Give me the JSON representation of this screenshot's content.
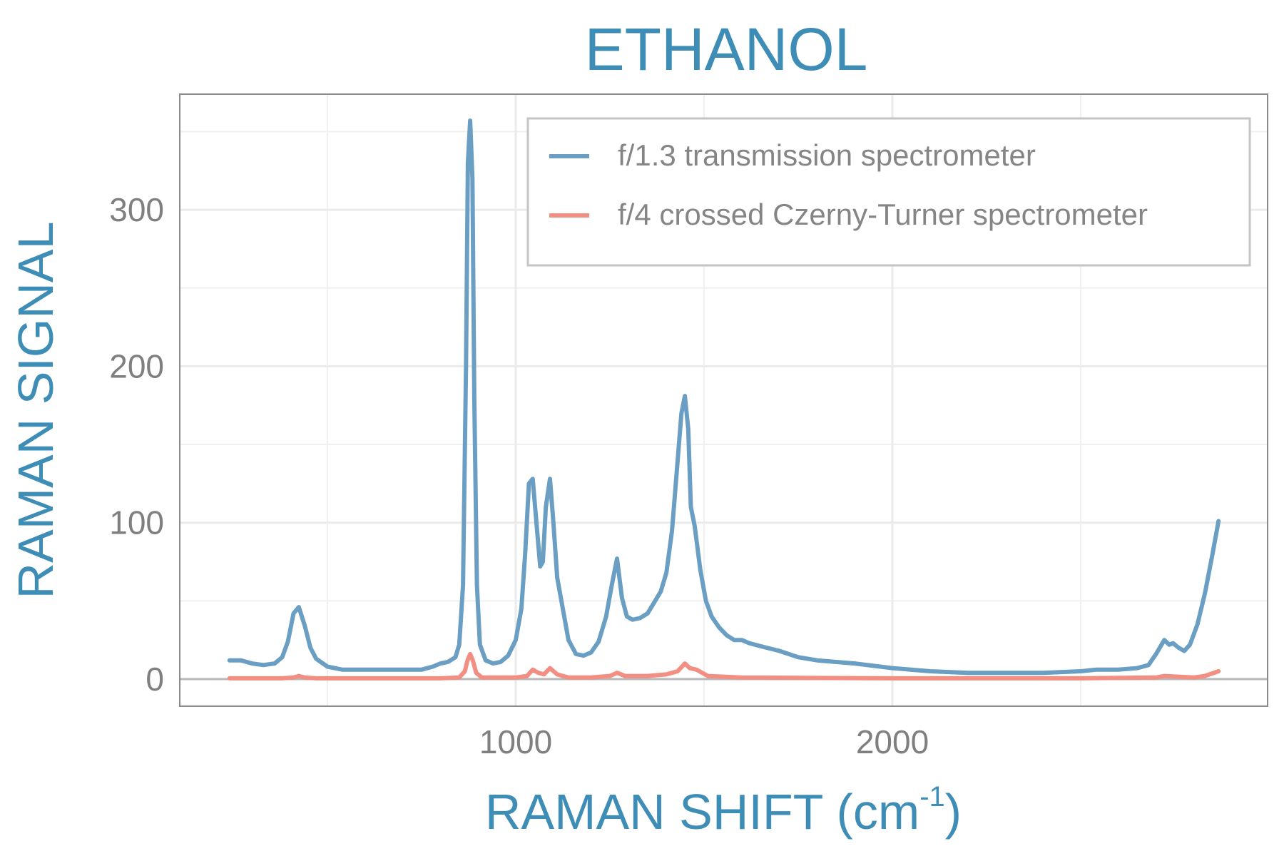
{
  "chart_data": {
    "type": "line",
    "title": "ETHANOL",
    "xlabel": "RAMAN SHIFT (cm-1)",
    "xlabel_parts": {
      "main": "RAMAN SHIFT (cm",
      "sup": "-1",
      "close": ")"
    },
    "ylabel": "RAMAN SIGNAL",
    "xlim": [
      0,
      3100
    ],
    "ylim": [
      -17,
      372
    ],
    "x_ticks": [
      1000,
      2000
    ],
    "x_tick_labels": [
      "1000",
      "2000"
    ],
    "x_minor_grid": [
      500,
      1500,
      2500
    ],
    "y_ticks": [
      0,
      100,
      200,
      300
    ],
    "y_tick_labels": [
      "0",
      "100",
      "200",
      "300"
    ],
    "y_minor_grid": [
      50,
      150,
      250,
      350
    ],
    "grid": true,
    "zero_line": true,
    "legend_position": "top-right (inside)",
    "series": [
      {
        "name": "f/1.3 transmission spectrometer",
        "color": "#6a9fc3",
        "x": [
          240,
          270,
          300,
          330,
          360,
          380,
          395,
          410,
          424,
          440,
          455,
          470,
          500,
          540,
          600,
          650,
          700,
          750,
          780,
          800,
          820,
          840,
          850,
          860,
          868,
          873,
          879,
          885,
          890,
          897,
          905,
          920,
          940,
          960,
          980,
          1000,
          1015,
          1025,
          1035,
          1045,
          1055,
          1065,
          1072,
          1080,
          1091,
          1100,
          1110,
          1125,
          1140,
          1160,
          1180,
          1200,
          1220,
          1240,
          1255,
          1269,
          1282,
          1295,
          1310,
          1330,
          1350,
          1370,
          1385,
          1400,
          1415,
          1430,
          1440,
          1449,
          1458,
          1465,
          1475,
          1490,
          1505,
          1520,
          1540,
          1560,
          1580,
          1600,
          1620,
          1650,
          1700,
          1750,
          1800,
          1900,
          2000,
          2100,
          2200,
          2300,
          2400,
          2500,
          2540,
          2560,
          2600,
          2650,
          2680,
          2700,
          2722,
          2735,
          2745,
          2760,
          2775,
          2790,
          2810,
          2830,
          2850,
          2866
        ],
        "y": [
          12,
          12,
          10,
          9,
          10,
          14,
          24,
          42,
          46,
          34,
          20,
          13,
          8,
          6,
          6,
          6,
          6,
          6,
          8,
          10,
          11,
          14,
          22,
          60,
          200,
          330,
          357,
          320,
          180,
          60,
          22,
          12,
          10,
          11,
          15,
          25,
          45,
          80,
          125,
          128,
          100,
          72,
          75,
          110,
          128,
          100,
          65,
          45,
          25,
          16,
          15,
          17,
          24,
          40,
          60,
          77,
          52,
          40,
          38,
          39,
          42,
          50,
          56,
          68,
          95,
          140,
          170,
          181,
          160,
          110,
          98,
          70,
          50,
          40,
          33,
          28,
          25,
          25,
          23,
          21,
          18,
          14,
          12,
          10,
          7,
          5,
          4,
          4,
          4,
          5,
          6,
          6,
          6,
          7,
          9,
          16,
          25,
          22,
          23,
          20,
          18,
          22,
          35,
          55,
          80,
          101
        ]
      },
      {
        "name": "f/4 crossed Czerny-Turner spectrometer",
        "color": "#f28e82",
        "x": [
          240,
          380,
          410,
          424,
          440,
          470,
          600,
          800,
          850,
          865,
          872,
          879,
          886,
          895,
          910,
          950,
          1000,
          1030,
          1045,
          1060,
          1075,
          1091,
          1110,
          1140,
          1200,
          1250,
          1269,
          1290,
          1350,
          1400,
          1430,
          1449,
          1462,
          1480,
          1510,
          1600,
          2000,
          2500,
          2700,
          2722,
          2800,
          2830,
          2866
        ],
        "y": [
          0.5,
          0.5,
          1,
          2,
          1,
          0.5,
          0.5,
          0.5,
          1,
          5,
          12,
          16,
          12,
          4,
          1,
          1,
          1,
          2,
          6,
          4,
          3,
          7,
          3,
          1,
          1,
          2,
          4,
          2,
          2,
          3,
          5,
          10,
          7,
          6,
          2,
          1,
          0.5,
          0.5,
          1,
          2,
          1,
          2,
          5
        ]
      }
    ]
  },
  "legend": {
    "items": [
      {
        "label": "f/1.3 transmission spectrometer",
        "color": "#6a9fc3"
      },
      {
        "label": "f/4 crossed Czerny-Turner spectrometer",
        "color": "#f28e82"
      }
    ]
  }
}
